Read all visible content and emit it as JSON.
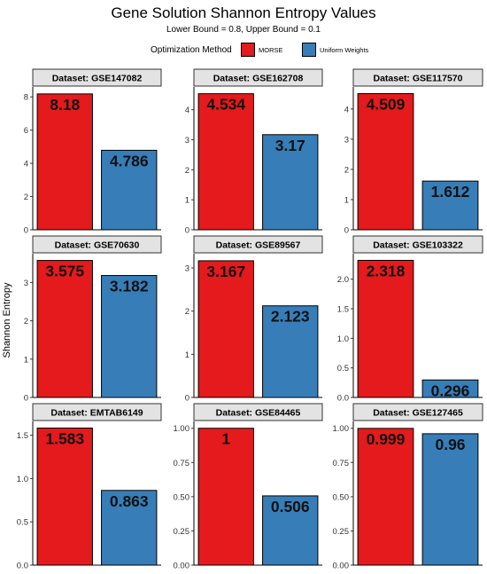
{
  "chart_data": {
    "type": "bar",
    "title": "Gene Solution Shannon Entropy Values",
    "subtitle": "Lower Bound = 0.8, Upper Bound = 0.1",
    "ylabel": "Shannon Entropy",
    "legend": {
      "title": "Optimization Method",
      "placement": "top",
      "entries": [
        {
          "name": "MORSE",
          "color": "#E41A1C"
        },
        {
          "name": "Uniform Weights",
          "color": "#377EB8"
        }
      ]
    },
    "grid": false,
    "panels": [
      {
        "label": "Dataset: GSE147082",
        "categories": [
          "MORSE",
          "Uniform Weights"
        ],
        "values": [
          8.18,
          4.786
        ],
        "value_labels": [
          "8.18",
          "4.786"
        ],
        "ylim": [
          0,
          8.6
        ],
        "ticks": [
          0,
          2,
          4,
          6,
          8
        ],
        "tick_labels": [
          "0",
          "2",
          "4",
          "6",
          "8"
        ]
      },
      {
        "label": "Dataset: GSE162708",
        "categories": [
          "MORSE",
          "Uniform Weights"
        ],
        "values": [
          4.534,
          3.17
        ],
        "value_labels": [
          "4.534",
          "3.17"
        ],
        "ylim": [
          0,
          4.76
        ],
        "ticks": [
          0,
          1,
          2,
          3,
          4
        ],
        "tick_labels": [
          "0",
          "1",
          "2",
          "3",
          "4"
        ]
      },
      {
        "label": "Dataset: GSE117570",
        "categories": [
          "MORSE",
          "Uniform Weights"
        ],
        "values": [
          4.509,
          1.612
        ],
        "value_labels": [
          "4.509",
          "1.612"
        ],
        "ylim": [
          0,
          4.73
        ],
        "ticks": [
          0,
          1,
          2,
          3,
          4
        ],
        "tick_labels": [
          "0",
          "1",
          "2",
          "3",
          "4"
        ]
      },
      {
        "label": "Dataset: GSE70630",
        "categories": [
          "MORSE",
          "Uniform Weights"
        ],
        "values": [
          3.575,
          3.182
        ],
        "value_labels": [
          "3.575",
          "3.182"
        ],
        "ylim": [
          0,
          3.75
        ],
        "ticks": [
          0,
          1,
          2,
          3
        ],
        "tick_labels": [
          "0",
          "1",
          "2",
          "3"
        ]
      },
      {
        "label": "Dataset: GSE89567",
        "categories": [
          "MORSE",
          "Uniform Weights"
        ],
        "values": [
          3.167,
          2.123
        ],
        "value_labels": [
          "3.167",
          "2.123"
        ],
        "ylim": [
          0,
          3.33
        ],
        "ticks": [
          0,
          1,
          2,
          3
        ],
        "tick_labels": [
          "0",
          "1",
          "2",
          "3"
        ]
      },
      {
        "label": "Dataset: GSE103322",
        "categories": [
          "MORSE",
          "Uniform Weights"
        ],
        "values": [
          2.318,
          0.296
        ],
        "value_labels": [
          "2.318",
          "0.296"
        ],
        "ylim": [
          0,
          2.43
        ],
        "ticks": [
          0,
          0.5,
          1,
          1.5,
          2
        ],
        "tick_labels": [
          "0.0",
          "0.5",
          "1.0",
          "1.5",
          "2.0"
        ]
      },
      {
        "label": "Dataset: EMTAB6149",
        "categories": [
          "MORSE",
          "Uniform Weights"
        ],
        "values": [
          1.583,
          0.863
        ],
        "value_labels": [
          "1.583",
          "0.863"
        ],
        "ylim": [
          0,
          1.66
        ],
        "ticks": [
          0,
          0.5,
          1,
          1.5
        ],
        "tick_labels": [
          "0.0",
          "0.5",
          "1.0",
          "1.5"
        ]
      },
      {
        "label": "Dataset: GSE84465",
        "categories": [
          "MORSE",
          "Uniform Weights"
        ],
        "values": [
          1.0,
          0.506
        ],
        "value_labels": [
          "1",
          "0.506"
        ],
        "ylim": [
          0,
          1.05
        ],
        "ticks": [
          0,
          0.25,
          0.5,
          0.75,
          1
        ],
        "tick_labels": [
          "0.00",
          "0.25",
          "0.50",
          "0.75",
          "1.00"
        ]
      },
      {
        "label": "Dataset: GSE127465",
        "categories": [
          "MORSE",
          "Uniform Weights"
        ],
        "values": [
          0.999,
          0.96
        ],
        "value_labels": [
          "0.999",
          "0.96"
        ],
        "ylim": [
          0,
          1.05
        ],
        "ticks": [
          0,
          0.25,
          0.5,
          0.75,
          1
        ],
        "tick_labels": [
          "0.00",
          "0.25",
          "0.50",
          "0.75",
          "1.00"
        ]
      }
    ]
  }
}
